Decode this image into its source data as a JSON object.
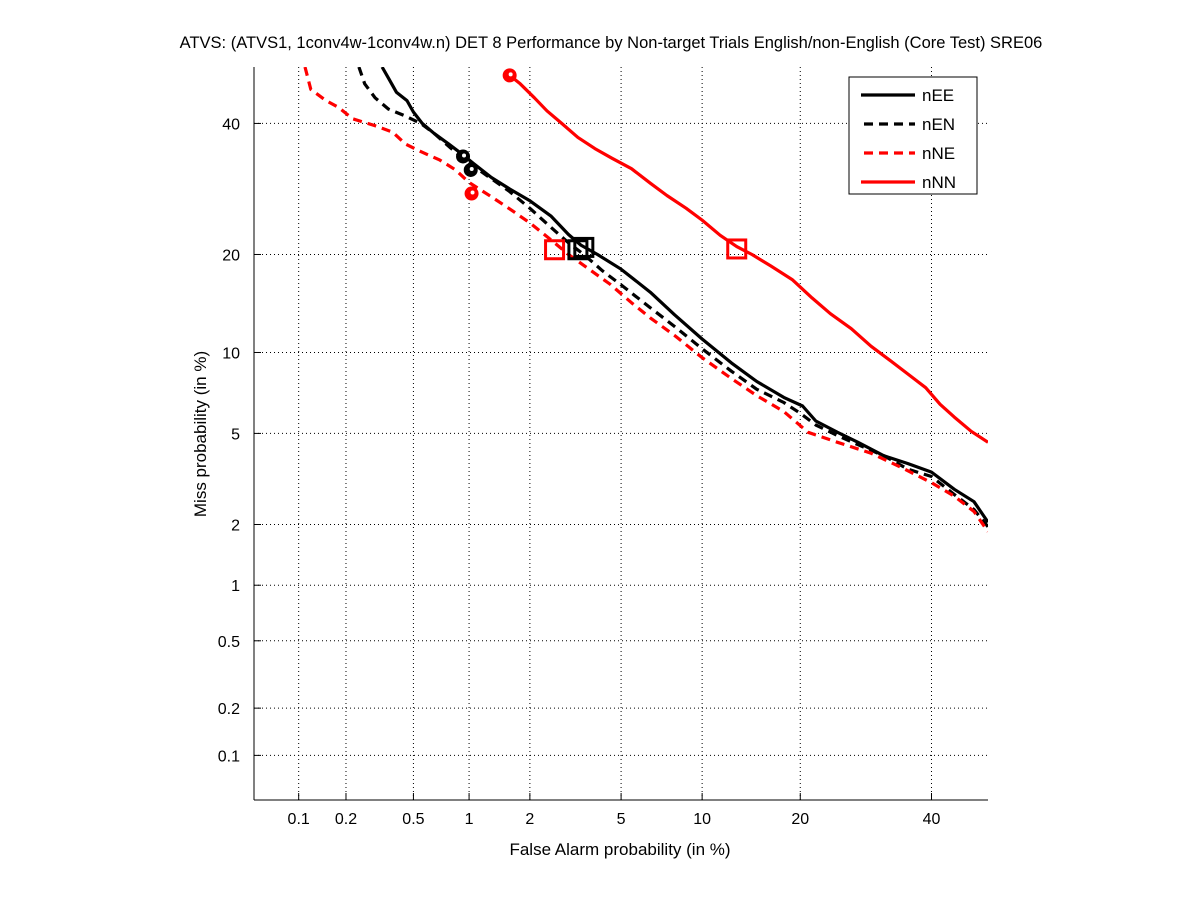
{
  "chart_data": {
    "type": "line",
    "title": "ATVS: (ATVS1, 1conv4w-1conv4w.n) DET 8 Performance by Non-target Trials English/non-English (Core Test) SRE06",
    "xlabel": "False Alarm probability (in %)",
    "ylabel": "Miss probability (in %)",
    "axis_scale": "normal-deviate (probit)",
    "xlim": [
      0.05,
      50
    ],
    "ylim": [
      0.05,
      50
    ],
    "grid": true,
    "legend_position": "top-right",
    "xticks": [
      {
        "value": 0.1,
        "label": "0.1"
      },
      {
        "value": 0.2,
        "label": "0.2"
      },
      {
        "value": 0.5,
        "label": "0.5"
      },
      {
        "value": 1,
        "label": "1"
      },
      {
        "value": 2,
        "label": "2"
      },
      {
        "value": 5,
        "label": "5"
      },
      {
        "value": 10,
        "label": "10"
      },
      {
        "value": 20,
        "label": "20"
      },
      {
        "value": 40,
        "label": "40"
      }
    ],
    "yticks": [
      {
        "value": 0.1,
        "label": "0.1"
      },
      {
        "value": 0.2,
        "label": "0.2"
      },
      {
        "value": 0.5,
        "label": "0.5"
      },
      {
        "value": 1,
        "label": "1"
      },
      {
        "value": 2,
        "label": "2"
      },
      {
        "value": 5,
        "label": "5"
      },
      {
        "value": 10,
        "label": "10"
      },
      {
        "value": 20,
        "label": "20"
      },
      {
        "value": 40,
        "label": "40"
      }
    ],
    "series": [
      {
        "name": "nEE",
        "color": "#000000",
        "style": "solid",
        "points": [
          [
            0.33,
            50
          ],
          [
            0.36,
            48
          ],
          [
            0.4,
            45.5
          ],
          [
            0.46,
            44
          ],
          [
            0.5,
            42
          ],
          [
            0.56,
            40
          ],
          [
            0.65,
            38.3
          ],
          [
            0.78,
            36.5
          ],
          [
            0.9,
            35
          ],
          [
            1.05,
            33.3
          ],
          [
            1.3,
            31
          ],
          [
            1.6,
            29.2
          ],
          [
            2.0,
            27.4
          ],
          [
            2.5,
            25.2
          ],
          [
            3.0,
            22.6
          ],
          [
            3.4,
            21.2
          ],
          [
            4.0,
            20.0
          ],
          [
            5.0,
            18.2
          ],
          [
            6.5,
            15.6
          ],
          [
            8.0,
            13.3
          ],
          [
            10.0,
            11.1
          ],
          [
            12.5,
            9.2
          ],
          [
            15.0,
            7.9
          ],
          [
            18.0,
            6.9
          ],
          [
            20.3,
            6.4
          ],
          [
            22.0,
            5.6
          ],
          [
            25.0,
            5.05
          ],
          [
            28.0,
            4.6
          ],
          [
            32.0,
            4.05
          ],
          [
            36.0,
            3.75
          ],
          [
            40.0,
            3.45
          ],
          [
            44.0,
            2.9
          ],
          [
            47.5,
            2.55
          ],
          [
            50.0,
            2.05
          ]
        ],
        "markers": {
          "min_dcf": [
            0.93,
            34.4
          ],
          "act_dcf": [
            3.5,
            20.9
          ]
        }
      },
      {
        "name": "nEN",
        "color": "#000000",
        "style": "dashed",
        "points": [
          [
            0.24,
            50
          ],
          [
            0.26,
            47
          ],
          [
            0.3,
            44.5
          ],
          [
            0.36,
            42.5
          ],
          [
            0.45,
            41.3
          ],
          [
            0.55,
            40
          ],
          [
            0.65,
            38.3
          ],
          [
            0.8,
            35.8
          ],
          [
            1.0,
            33.3
          ],
          [
            1.3,
            30.8
          ],
          [
            1.6,
            28.8
          ],
          [
            2.0,
            26.3
          ],
          [
            2.5,
            23.6
          ],
          [
            3.0,
            21.5
          ],
          [
            3.5,
            20.0
          ],
          [
            4.2,
            18.0
          ],
          [
            5.0,
            16.4
          ],
          [
            6.5,
            14.0
          ],
          [
            8.0,
            12.2
          ],
          [
            10.0,
            10.3
          ],
          [
            12.5,
            8.6
          ],
          [
            15.0,
            7.4
          ],
          [
            18.0,
            6.6
          ],
          [
            20.0,
            6.0
          ],
          [
            22.0,
            5.4
          ],
          [
            25.0,
            4.9
          ],
          [
            28.0,
            4.5
          ],
          [
            32.0,
            4.05
          ],
          [
            36.0,
            3.55
          ],
          [
            40.0,
            3.3
          ],
          [
            44.0,
            2.75
          ],
          [
            47.5,
            2.35
          ],
          [
            50.0,
            1.95
          ]
        ],
        "markers": {
          "min_dcf": [
            1.02,
            32.2
          ],
          "act_dcf": [
            3.3,
            20.6
          ]
        }
      },
      {
        "name": "nNE",
        "color": "#ff0000",
        "style": "dashed",
        "points": [
          [
            0.11,
            50
          ],
          [
            0.12,
            46
          ],
          [
            0.15,
            44
          ],
          [
            0.18,
            42.8
          ],
          [
            0.22,
            40.8
          ],
          [
            0.3,
            39.6
          ],
          [
            0.38,
            38.5
          ],
          [
            0.45,
            36.5
          ],
          [
            0.55,
            35.2
          ],
          [
            0.7,
            33.8
          ],
          [
            0.85,
            32.2
          ],
          [
            1.0,
            30.2
          ],
          [
            1.3,
            28.0
          ],
          [
            1.6,
            26.2
          ],
          [
            2.0,
            24.2
          ],
          [
            2.5,
            21.9
          ],
          [
            3.0,
            20.0
          ],
          [
            3.6,
            18.4
          ],
          [
            4.5,
            16.5
          ],
          [
            5.5,
            14.5
          ],
          [
            6.5,
            13.0
          ],
          [
            8.0,
            11.4
          ],
          [
            10.0,
            9.6
          ],
          [
            12.5,
            8.1
          ],
          [
            15.0,
            7.0
          ],
          [
            18.0,
            6.1
          ],
          [
            21.0,
            5.05
          ],
          [
            25.0,
            4.6
          ],
          [
            30.0,
            4.15
          ],
          [
            35.0,
            3.6
          ],
          [
            40.0,
            3.1
          ],
          [
            44.0,
            2.7
          ],
          [
            47.5,
            2.3
          ],
          [
            50.0,
            1.85
          ]
        ],
        "markers": {
          "min_dcf": [
            1.03,
            28.5
          ],
          "act_dcf": [
            2.6,
            20.6
          ]
        }
      },
      {
        "name": "nNN",
        "color": "#ff0000",
        "style": "solid",
        "points": [
          [
            1.6,
            48.5
          ],
          [
            1.8,
            47
          ],
          [
            2.1,
            44.5
          ],
          [
            2.4,
            42.2
          ],
          [
            2.8,
            40.0
          ],
          [
            3.3,
            37.6
          ],
          [
            3.9,
            35.7
          ],
          [
            4.6,
            34.1
          ],
          [
            5.5,
            32.4
          ],
          [
            6.5,
            30.1
          ],
          [
            7.5,
            28.2
          ],
          [
            8.8,
            26.3
          ],
          [
            10.0,
            24.6
          ],
          [
            11.5,
            22.5
          ],
          [
            13.0,
            21.0
          ],
          [
            14.5,
            20.0
          ],
          [
            16.5,
            18.6
          ],
          [
            19.0,
            17.0
          ],
          [
            21.5,
            15.0
          ],
          [
            24.0,
            13.4
          ],
          [
            27.0,
            12.0
          ],
          [
            30.0,
            10.5
          ],
          [
            33.0,
            9.4
          ],
          [
            36.0,
            8.4
          ],
          [
            39.0,
            7.5
          ],
          [
            41.5,
            6.5
          ],
          [
            44.0,
            5.8
          ],
          [
            47.0,
            5.1
          ],
          [
            50.0,
            4.6
          ]
        ],
        "markers": {
          "min_dcf": [
            1.6,
            48.5
          ],
          "act_dcf": [
            13.0,
            20.7
          ]
        }
      }
    ]
  }
}
